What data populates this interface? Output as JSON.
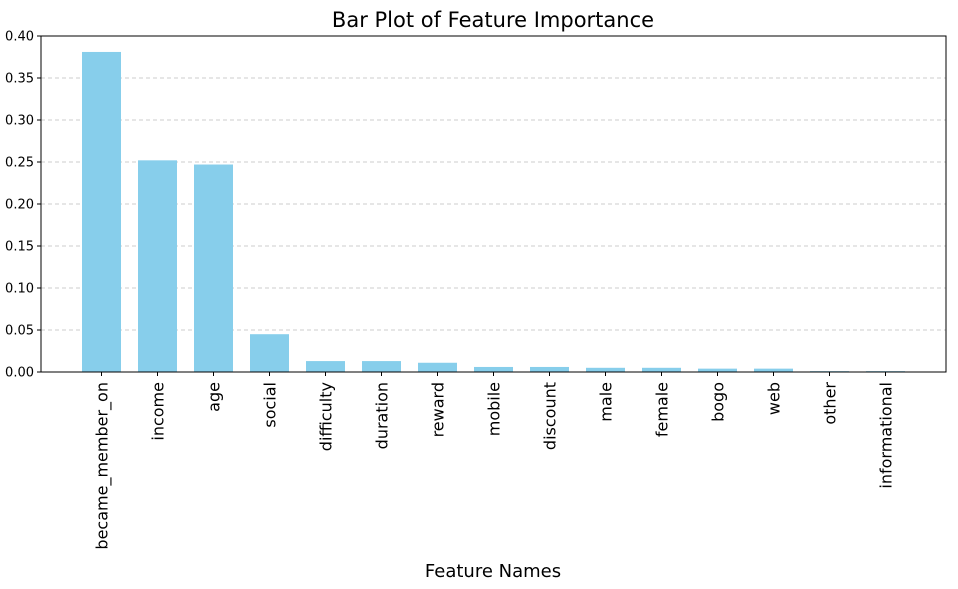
{
  "chart_data": {
    "type": "bar",
    "title": "Bar Plot of Feature Importance",
    "xlabel": "Feature Names",
    "ylabel": "",
    "ylim": [
      0,
      0.4
    ],
    "yticks": [
      "0.00",
      "0.05",
      "0.10",
      "0.15",
      "0.20",
      "0.25",
      "0.30",
      "0.35",
      "0.40"
    ],
    "grid": "horizontal-dashed",
    "bar_color": "#87ceeb",
    "categories": [
      "became_member_on",
      "income",
      "age",
      "social",
      "difficulty",
      "duration",
      "reward",
      "mobile",
      "discount",
      "male",
      "female",
      "bogo",
      "web",
      "other",
      "informational"
    ],
    "values": [
      0.381,
      0.252,
      0.247,
      0.045,
      0.013,
      0.013,
      0.011,
      0.006,
      0.006,
      0.005,
      0.005,
      0.004,
      0.004,
      0.001,
      0.001
    ]
  }
}
